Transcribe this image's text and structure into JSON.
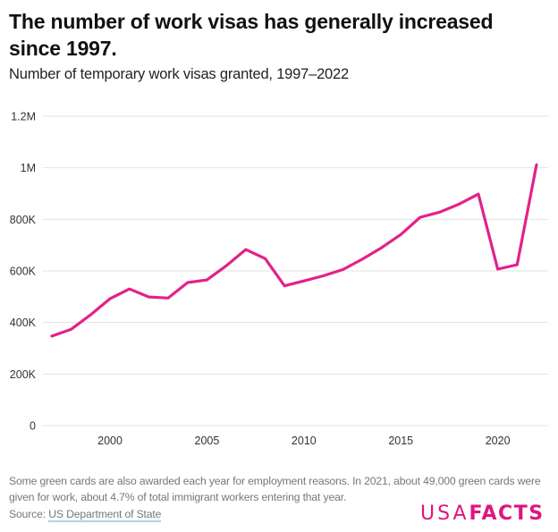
{
  "header": {
    "title": "The number of work visas has generally increased since 1997.",
    "subtitle": "Number of temporary work visas granted, 1997–2022"
  },
  "footer": {
    "note": "Some green cards are also awarded each year for employment reasons. In 2021, about 49,000 green cards were given for work, about 4.7% of total immigrant workers entering that year.",
    "source_prefix": "Source: ",
    "source_link": "US Department of State",
    "logo_light": "USA",
    "logo_bold": "FACTS"
  },
  "colors": {
    "line": "#e3218b",
    "grid": "#e2e2e2",
    "brand": "#e0157e",
    "link_underline": "#a9d5ea"
  },
  "chart_data": {
    "type": "line",
    "title": "The number of work visas has generally increased since 1997.",
    "subtitle": "Number of temporary work visas granted, 1997–2022",
    "xlabel": "",
    "ylabel": "",
    "xlim": [
      1997,
      2022
    ],
    "ylim": [
      0,
      1200000
    ],
    "grid": true,
    "legend": "none",
    "x_ticks": [
      2000,
      2005,
      2010,
      2015,
      2020
    ],
    "x_tick_labels": [
      "2000",
      "2005",
      "2010",
      "2015",
      "2020"
    ],
    "y_ticks": [
      0,
      200000,
      400000,
      600000,
      800000,
      1000000,
      1200000
    ],
    "y_tick_labels": [
      "0",
      "200K",
      "400K",
      "600K",
      "800K",
      "1M",
      "1.2M"
    ],
    "series": [
      {
        "name": "Temporary work visas granted",
        "x": [
          1997,
          1998,
          1999,
          2000,
          2001,
          2002,
          2003,
          2004,
          2005,
          2006,
          2007,
          2008,
          2009,
          2010,
          2011,
          2012,
          2013,
          2014,
          2015,
          2016,
          2017,
          2018,
          2019,
          2020,
          2021,
          2022
        ],
        "values": [
          347000,
          374000,
          430000,
          492000,
          530000,
          499000,
          495000,
          555000,
          565000,
          620000,
          683000,
          648000,
          542000,
          561000,
          581000,
          605000,
          645000,
          690000,
          741000,
          808000,
          828000,
          859000,
          898000,
          607000,
          624000,
          1012000
        ]
      }
    ]
  }
}
